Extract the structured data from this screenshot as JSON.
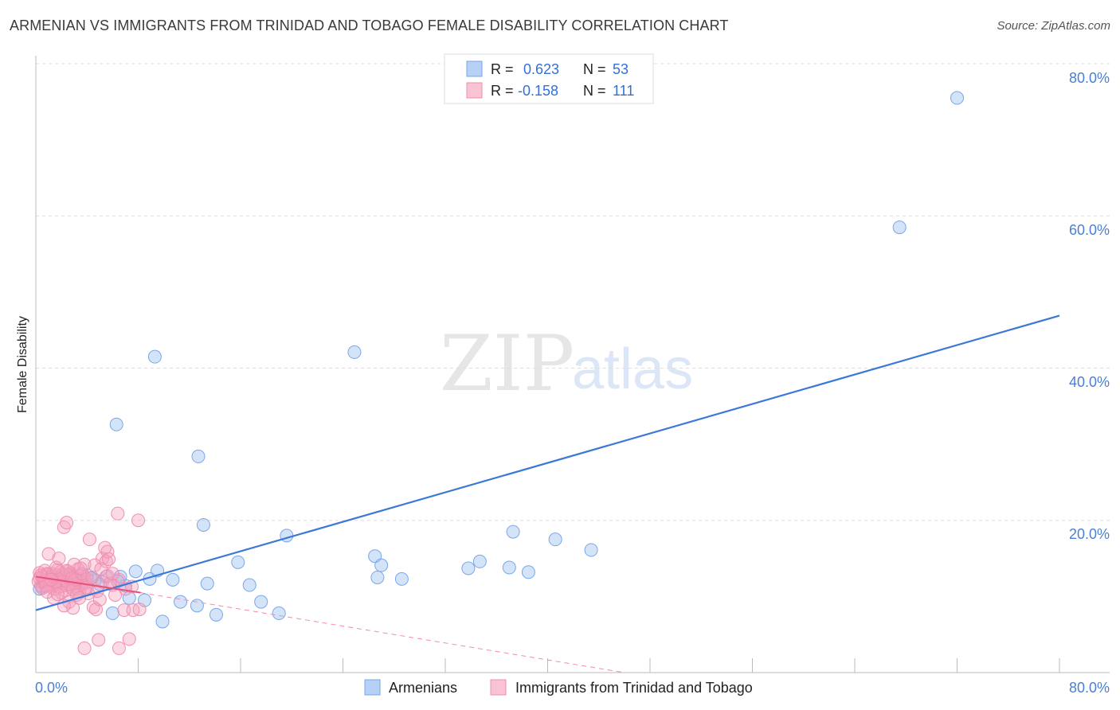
{
  "header": {
    "title": "ARMENIAN VS IMMIGRANTS FROM TRINIDAD AND TOBAGO FEMALE DISABILITY CORRELATION CHART",
    "source": "Source: ZipAtlas.com"
  },
  "watermark": {
    "zip": "ZIP",
    "atlas": "atlas"
  },
  "legend_box": {
    "r_label": "R =",
    "n_label": "N =",
    "rows": [
      {
        "r": "0.623",
        "n": "53",
        "color": "#b7d0f5",
        "stroke": "#7aa6e8"
      },
      {
        "r": "-0.158",
        "n": "111",
        "color": "#f8c3d3",
        "stroke": "#ee8fae"
      }
    ]
  },
  "bottom_legend": {
    "items": [
      {
        "label": "Armenians",
        "color": "#b7d0f5",
        "stroke": "#7aa6e8"
      },
      {
        "label": "Immigrants from Trinidad and Tobago",
        "color": "#f8c3d3",
        "stroke": "#ee8fae"
      }
    ]
  },
  "axes": {
    "y_label": "Female Disability",
    "y_ticks": [
      "80.0%",
      "60.0%",
      "40.0%",
      "20.0%"
    ],
    "x_ticks": [
      "0.0%",
      "80.0%"
    ]
  },
  "chart_data": {
    "type": "scatter",
    "title": "ARMENIAN VS IMMIGRANTS FROM TRINIDAD AND TOBAGO FEMALE DISABILITY CORRELATION CHART",
    "xlabel": "",
    "ylabel": "Female Disability",
    "xlim": [
      0,
      80
    ],
    "ylim": [
      0,
      80
    ],
    "y_tick_values": [
      80,
      60,
      40,
      20
    ],
    "x_tick_values": [
      0,
      80
    ],
    "grid": true,
    "legend_position": "top-center",
    "series": [
      {
        "name": "Armenians",
        "color": "#3b78d8",
        "fill": "rgba(160,195,240,0.45)",
        "stroke": "#7aa6e8",
        "r": 0.623,
        "n": 53,
        "trend": {
          "x0": 0,
          "y0": 8.2,
          "x1": 80,
          "y1": 46.9
        },
        "points": [
          [
            0.5,
            11.3
          ],
          [
            1.0,
            12.0
          ],
          [
            1.6,
            11.7
          ],
          [
            2.2,
            12.4
          ],
          [
            2.8,
            11.5
          ],
          [
            3.3,
            12.2
          ],
          [
            4.0,
            12.8
          ],
          [
            4.6,
            12.1
          ],
          [
            5.0,
            11.6
          ],
          [
            5.5,
            12.6
          ],
          [
            6.0,
            7.8
          ],
          [
            6.6,
            12.6
          ],
          [
            7.0,
            11.4
          ],
          [
            7.3,
            9.8
          ],
          [
            7.8,
            13.3
          ],
          [
            8.5,
            9.5
          ],
          [
            8.9,
            12.3
          ],
          [
            9.5,
            13.4
          ],
          [
            9.9,
            6.7
          ],
          [
            10.7,
            12.2
          ],
          [
            11.3,
            9.3
          ],
          [
            12.6,
            8.8
          ],
          [
            13.1,
            19.4
          ],
          [
            13.4,
            11.7
          ],
          [
            14.1,
            7.6
          ],
          [
            15.8,
            14.5
          ],
          [
            16.7,
            11.5
          ],
          [
            17.6,
            9.3
          ],
          [
            19.0,
            7.8
          ],
          [
            19.6,
            18.0
          ],
          [
            26.5,
            15.3
          ],
          [
            26.7,
            12.5
          ],
          [
            27.0,
            14.1
          ],
          [
            28.6,
            12.3
          ],
          [
            33.8,
            13.7
          ],
          [
            34.7,
            14.6
          ],
          [
            37.0,
            13.8
          ],
          [
            37.3,
            18.5
          ],
          [
            38.5,
            13.2
          ],
          [
            40.6,
            17.5
          ],
          [
            43.4,
            16.1
          ],
          [
            6.3,
            32.6
          ],
          [
            9.3,
            41.5
          ],
          [
            12.7,
            28.4
          ],
          [
            24.9,
            42.1
          ],
          [
            67.5,
            58.5
          ],
          [
            72.0,
            75.5
          ],
          [
            0.3,
            11.0
          ],
          [
            1.3,
            12.5
          ],
          [
            2.6,
            12.9
          ],
          [
            4.3,
            12.4
          ],
          [
            3.6,
            11.8
          ],
          [
            6.4,
            12.0
          ]
        ]
      },
      {
        "name": "Immigrants from Trinidad and Tobago",
        "color": "#e8507a",
        "fill": "rgba(244,160,190,0.40)",
        "stroke": "#ee8fae",
        "r": -0.158,
        "n": 111,
        "trend": {
          "x0": 0,
          "y0": 12.6,
          "x1": 8.2,
          "y1": 10.5,
          "dash_x1": 46.0,
          "dash_y1": 0
        },
        "points": [
          [
            0.2,
            12.0
          ],
          [
            0.3,
            13.1
          ],
          [
            0.4,
            11.4
          ],
          [
            0.5,
            12.6
          ],
          [
            0.6,
            11.9
          ],
          [
            0.7,
            13.4
          ],
          [
            0.8,
            12.2
          ],
          [
            0.9,
            11.7
          ],
          [
            1.0,
            12.9
          ],
          [
            1.1,
            12.4
          ],
          [
            1.2,
            11.2
          ],
          [
            1.3,
            13.0
          ],
          [
            1.4,
            12.1
          ],
          [
            1.5,
            11.6
          ],
          [
            1.6,
            12.8
          ],
          [
            1.7,
            12.3
          ],
          [
            1.8,
            11.8
          ],
          [
            1.9,
            13.2
          ],
          [
            2.0,
            12.0
          ],
          [
            2.1,
            11.4
          ],
          [
            2.2,
            12.7
          ],
          [
            2.3,
            12.2
          ],
          [
            2.4,
            11.9
          ],
          [
            2.5,
            13.3
          ],
          [
            2.6,
            12.5
          ],
          [
            2.7,
            11.3
          ],
          [
            2.8,
            12.9
          ],
          [
            2.9,
            12.1
          ],
          [
            3.0,
            11.7
          ],
          [
            3.1,
            12.6
          ],
          [
            3.2,
            11.0
          ],
          [
            3.3,
            12.4
          ],
          [
            3.4,
            10.6
          ],
          [
            3.5,
            12.0
          ],
          [
            3.6,
            11.5
          ],
          [
            3.7,
            12.8
          ],
          [
            3.8,
            10.9
          ],
          [
            3.9,
            11.8
          ],
          [
            4.0,
            12.3
          ],
          [
            4.1,
            10.4
          ],
          [
            0.3,
            12.4
          ],
          [
            0.5,
            11.1
          ],
          [
            0.7,
            12.0
          ],
          [
            0.9,
            13.0
          ],
          [
            1.1,
            11.5
          ],
          [
            1.3,
            12.7
          ],
          [
            1.5,
            11.0
          ],
          [
            1.7,
            13.5
          ],
          [
            1.9,
            11.3
          ],
          [
            2.1,
            12.9
          ],
          [
            2.3,
            10.8
          ],
          [
            2.5,
            11.6
          ],
          [
            2.7,
            13.1
          ],
          [
            2.9,
            11.0
          ],
          [
            3.1,
            12.2
          ],
          [
            3.3,
            13.6
          ],
          [
            0.4,
            12.8
          ],
          [
            0.8,
            11.4
          ],
          [
            1.2,
            12.2
          ],
          [
            1.6,
            13.8
          ],
          [
            2.0,
            10.5
          ],
          [
            2.4,
            13.4
          ],
          [
            2.8,
            12.4
          ],
          [
            3.2,
            10.2
          ],
          [
            3.6,
            13.0
          ],
          [
            4.0,
            11.2
          ],
          [
            4.4,
            12.5
          ],
          [
            4.8,
            10.7
          ],
          [
            5.2,
            11.9
          ],
          [
            5.6,
            12.7
          ],
          [
            6.0,
            11.5
          ],
          [
            6.5,
            12.2
          ],
          [
            7.0,
            11.0
          ],
          [
            7.5,
            11.3
          ],
          [
            1.0,
            15.6
          ],
          [
            1.8,
            15.0
          ],
          [
            2.2,
            19.1
          ],
          [
            2.4,
            19.7
          ],
          [
            2.6,
            9.3
          ],
          [
            2.9,
            8.5
          ],
          [
            3.4,
            9.8
          ],
          [
            3.8,
            14.2
          ],
          [
            4.2,
            17.5
          ],
          [
            4.5,
            8.6
          ],
          [
            4.7,
            8.3
          ],
          [
            5.0,
            9.6
          ],
          [
            5.2,
            15.0
          ],
          [
            5.4,
            16.4
          ],
          [
            5.5,
            14.6
          ],
          [
            5.6,
            15.9
          ],
          [
            6.4,
            20.9
          ],
          [
            6.9,
            8.2
          ],
          [
            7.6,
            8.2
          ],
          [
            8.0,
            20.0
          ],
          [
            5.8,
            11.7
          ],
          [
            6.2,
            10.2
          ],
          [
            8.1,
            8.3
          ],
          [
            3.0,
            14.2
          ],
          [
            3.5,
            13.7
          ],
          [
            4.6,
            14.1
          ],
          [
            5.1,
            13.6
          ],
          [
            5.7,
            14.9
          ],
          [
            3.8,
            3.2
          ],
          [
            4.9,
            4.3
          ],
          [
            6.5,
            3.2
          ],
          [
            7.3,
            4.4
          ],
          [
            1.4,
            9.8
          ],
          [
            2.2,
            8.8
          ],
          [
            0.9,
            10.6
          ],
          [
            1.7,
            10.3
          ],
          [
            6.0,
            13.0
          ]
        ]
      }
    ]
  }
}
